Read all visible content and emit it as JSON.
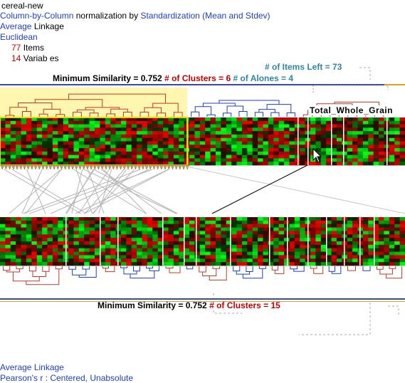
{
  "header": {
    "dataset": "cereal-new",
    "normalization_prefix": "Column-by-Column",
    "normalization_mid": "normalization by",
    "normalization_method": "Standardization (Mean and Stdev)",
    "linkage_word1": "Average",
    "linkage_word2": "Linkage",
    "distance": "Euclidean",
    "items_count": "77",
    "items_label": "Items",
    "vars_count": "14",
    "vars_label": "Variab es"
  },
  "top_panel": {
    "items_left": "# of Items Left = 73",
    "min_similarity": "Minimum Similarity = 0.752",
    "clusters": "# of Clusters = 6",
    "alones": "# of Alones = 4",
    "tooltip": "Total_Whole_Grain"
  },
  "bottom_panel": {
    "min_similarity": "Minimum Similarity = 0.752",
    "clusters": "# of Clusters = 15"
  },
  "footer": {
    "linkage": "Average Linkage",
    "correlation": "Pearson's r : Centered, Unabsolute"
  },
  "colors": {
    "cluster_red": "#c0392b",
    "cluster_blue": "#1f3fbf",
    "highlight_bg": "#fff6b0",
    "heat_red": "#d81010",
    "heat_green": "#1aef2a"
  }
}
